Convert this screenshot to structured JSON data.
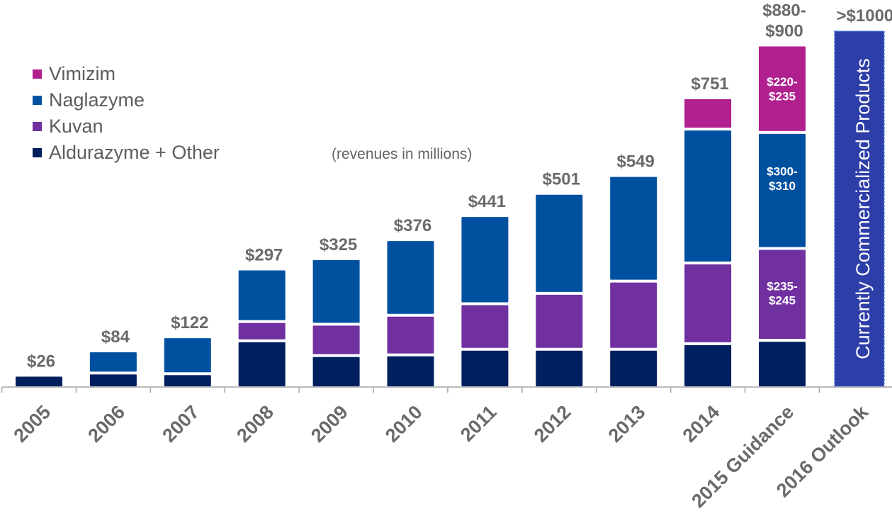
{
  "chart_data": {
    "type": "bar",
    "stacked": true,
    "title": "",
    "subtitle": "(revenues in millions)",
    "xlabel": "",
    "ylabel": "",
    "ylim": [
      0,
      1000
    ],
    "grid": false,
    "legend_position": "top-left",
    "categories": [
      "2005",
      "2006",
      "2007",
      "2008",
      "2009",
      "2010",
      "2011",
      "2012",
      "2013",
      "2014",
      "2015 Guidance",
      "2016 Outlook"
    ],
    "series": [
      {
        "name": "Aldurazyme + Other",
        "color": "#001f5f",
        "values": [
          26,
          32,
          30,
          119,
          79,
          81,
          96,
          96,
          96,
          111,
          120,
          null
        ]
      },
      {
        "name": "Kuvan",
        "color": "#7030a0",
        "values": [
          0,
          0,
          0,
          44,
          77,
          99,
          115,
          143,
          176,
          210,
          240,
          null
        ]
      },
      {
        "name": "Naglazyme",
        "color": "#0050a0",
        "values": [
          0,
          52,
          92,
          134,
          169,
          196,
          230,
          262,
          277,
          353,
          305,
          null
        ]
      },
      {
        "name": "Vimizim",
        "color": "#b0208f",
        "values": [
          0,
          0,
          0,
          0,
          0,
          0,
          0,
          0,
          0,
          77,
          228,
          null
        ]
      }
    ],
    "totals": [
      26,
      84,
      122,
      297,
      325,
      376,
      441,
      501,
      549,
      751,
      890,
      1000
    ],
    "total_labels": [
      "$26",
      "$84",
      "$122",
      "$297",
      "$325",
      "$376",
      "$441",
      "$501",
      "$549",
      "$751",
      "$880-\n$900",
      ">$1000"
    ],
    "inner_labels": {
      "2015 Guidance": {
        "Vimizim": "$220-\n$235",
        "Naglazyme": "$300-\n$310",
        "Kuvan": "$235-\n$245"
      }
    },
    "outlook_bar": {
      "category": "2016 Outlook",
      "value": 1000,
      "label": "Currently Commercialized Products",
      "color": "#2e3ea8",
      "border_color": "#4a7fe0"
    },
    "legend": [
      "Vimizim",
      "Naglazyme",
      "Kuvan",
      "Aldurazyme + Other"
    ]
  },
  "legend": {
    "items": [
      {
        "label": "Vimizim",
        "color": "#b0208f"
      },
      {
        "label": "Naglazyme",
        "color": "#0050a0"
      },
      {
        "label": "Kuvan",
        "color": "#7030a0"
      },
      {
        "label": "Aldurazyme + Other",
        "color": "#001f5f"
      }
    ]
  },
  "axis_color": "#a6a6a6"
}
